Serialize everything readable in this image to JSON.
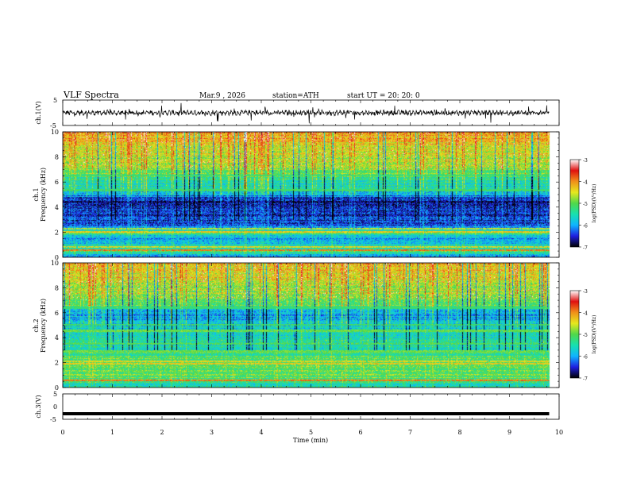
{
  "header": {
    "title": "VLF  Spectra",
    "date": "Mar.9   , 2026",
    "station": "station=ATH",
    "start_ut": "start  UT  =    20: 20: 0"
  },
  "chart_data": [
    {
      "type": "line",
      "name": "ch1-waveform",
      "ylabel": "ch.1(V)",
      "ylim": [
        -5,
        5
      ],
      "yticks": [
        "5",
        "-5"
      ],
      "xlim": [
        0,
        10
      ],
      "baseline": 0,
      "data_end_min": 9.8
    },
    {
      "type": "heatmap",
      "name": "ch1-spectrogram",
      "ylabel": "ch.1\nFrequency  (kHz)",
      "ylabel_lines": [
        "ch.1",
        "Frequency  (kHz)"
      ],
      "ylim": [
        0,
        10
      ],
      "yticks": [
        "0",
        "2",
        "4",
        "6",
        "8",
        "10"
      ],
      "xlim": [
        0,
        10
      ],
      "data_end_min": 9.8,
      "colorbar": {
        "label": "log(PSD)(V²/Hz)",
        "range": [
          -7,
          -3
        ],
        "ticks": [
          "-3",
          "-4",
          "-5",
          "-6",
          "-7"
        ]
      },
      "profile_khz_level": [
        [
          0,
          -6.3
        ],
        [
          0.4,
          -5.2
        ],
        [
          0.9,
          -5.5
        ],
        [
          1.5,
          -6.1
        ],
        [
          2.0,
          -5.0
        ],
        [
          2.4,
          -6.2
        ],
        [
          3.0,
          -6.4
        ],
        [
          3.6,
          -6.6
        ],
        [
          4.5,
          -6.6
        ],
        [
          5.2,
          -5.8
        ],
        [
          6.0,
          -5.4
        ],
        [
          7.0,
          -4.9
        ],
        [
          8.0,
          -4.6
        ],
        [
          9.0,
          -4.3
        ],
        [
          10.0,
          -4.1
        ]
      ],
      "lines_khz": [
        [
          0.55,
          -3.9
        ],
        [
          0.8,
          -4.4
        ],
        [
          2.05,
          -4.3
        ],
        [
          2.3,
          -4.6
        ],
        [
          5.35,
          -5.1
        ],
        [
          6.5,
          -5.2
        ]
      ]
    },
    {
      "type": "heatmap",
      "name": "ch2-spectrogram",
      "ylabel": "ch.2\nFrequency  (kHz)",
      "ylabel_lines": [
        "ch.2",
        "Frequency  (kHz)"
      ],
      "ylim": [
        0,
        10
      ],
      "yticks": [
        "0",
        "2",
        "4",
        "6",
        "8",
        "10"
      ],
      "xlim": [
        0,
        10
      ],
      "data_end_min": 9.8,
      "colorbar": {
        "label": "log(PSD)(V²/Hz)",
        "range": [
          -7,
          -3
        ],
        "ticks": [
          "-3",
          "-4",
          "-5",
          "-6",
          "-7"
        ]
      },
      "profile_khz_level": [
        [
          0,
          -5.6
        ],
        [
          0.5,
          -5.2
        ],
        [
          1.0,
          -5.0
        ],
        [
          2.0,
          -5.1
        ],
        [
          3.0,
          -5.4
        ],
        [
          3.5,
          -5.5
        ],
        [
          4.0,
          -5.5
        ],
        [
          4.8,
          -5.6
        ],
        [
          5.5,
          -5.9
        ],
        [
          6.0,
          -6.1
        ],
        [
          6.6,
          -5.0
        ],
        [
          7.5,
          -4.8
        ],
        [
          8.5,
          -4.5
        ],
        [
          10.0,
          -4.2
        ]
      ],
      "lines_khz": [
        [
          0.55,
          -3.9
        ],
        [
          1.9,
          -4.3
        ],
        [
          2.1,
          -4.4
        ],
        [
          2.9,
          -4.9
        ],
        [
          3.5,
          -5.0
        ],
        [
          4.55,
          -4.9
        ],
        [
          5.05,
          -5.1
        ],
        [
          6.4,
          -5.2
        ]
      ]
    },
    {
      "type": "line",
      "name": "ch3-waveform",
      "ylabel": "ch.3(V)",
      "ylim": [
        -5,
        5
      ],
      "yticks": [
        "5",
        "0",
        "-5"
      ],
      "xlim": [
        0,
        10
      ],
      "baseline": -2.8,
      "data_end_min": 9.8,
      "xlabel": "Time  (min)",
      "xticks": [
        "0",
        "1",
        "2",
        "3",
        "4",
        "5",
        "6",
        "7",
        "8",
        "9",
        "10"
      ]
    }
  ],
  "colors": {
    "colormap": [
      "#000000",
      "#1f1fe0",
      "#0fb4ff",
      "#17e0b0",
      "#50d84a",
      "#e6e81e",
      "#f0901a",
      "#e01010",
      "#ffffff"
    ]
  }
}
